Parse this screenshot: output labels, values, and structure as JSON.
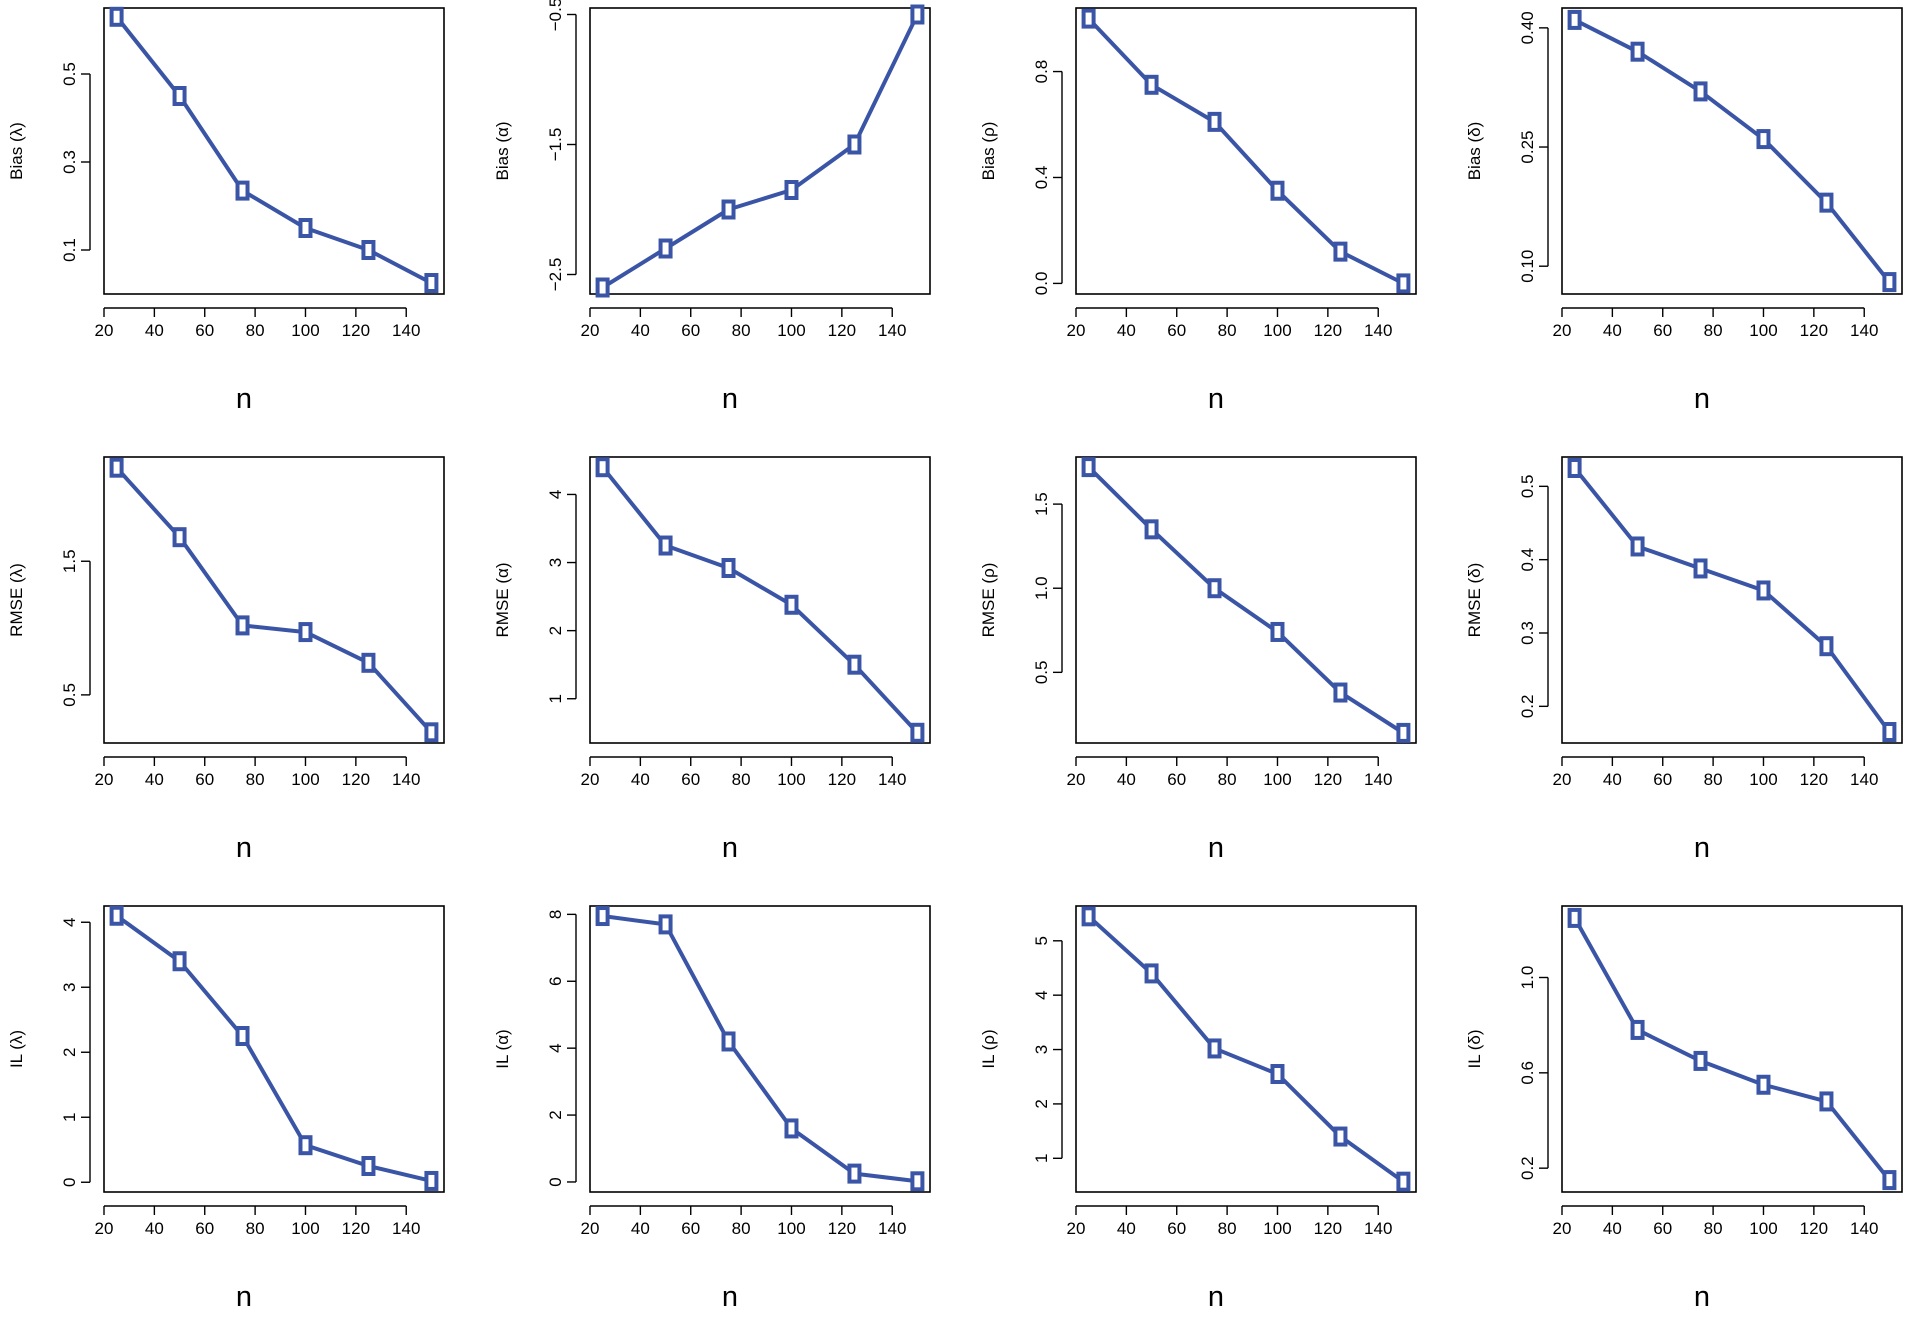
{
  "style": {
    "series_color": "#3b55a6",
    "axis_color": "#000000",
    "background": "#ffffff"
  },
  "chart_data": [
    {
      "type": "line",
      "title": "",
      "xlabel": "n",
      "ylabel": "Bias (λ)",
      "x": [
        25,
        50,
        75,
        100,
        125,
        150
      ],
      "values": [
        0.63,
        0.45,
        0.235,
        0.15,
        0.1,
        0.025
      ],
      "xlim": [
        20,
        155
      ],
      "ylim": [
        0.0,
        0.65
      ],
      "xticks": [
        20,
        40,
        60,
        80,
        100,
        120,
        140
      ],
      "xticklabels": [
        "20",
        "40",
        "60",
        "80",
        "100",
        "120",
        "140"
      ],
      "yticks": [
        0.1,
        0.3,
        0.5
      ],
      "yticklabels": [
        "0.1",
        "0.3",
        "0.5"
      ]
    },
    {
      "type": "line",
      "title": "",
      "xlabel": "n",
      "ylabel": "Bias (α)",
      "x": [
        25,
        50,
        75,
        100,
        125,
        150
      ],
      "values": [
        -2.6,
        -2.3,
        -2.0,
        -1.85,
        -1.5,
        -0.5
      ],
      "xlim": [
        20,
        155
      ],
      "ylim": [
        -2.65,
        -0.45
      ],
      "xticks": [
        20,
        40,
        60,
        80,
        100,
        120,
        140
      ],
      "xticklabels": [
        "20",
        "40",
        "60",
        "80",
        "100",
        "120",
        "140"
      ],
      "yticks": [
        -2.5,
        -1.5,
        -0.5
      ],
      "yticklabels": [
        "−2.5",
        "−1.5",
        "−0.5"
      ]
    },
    {
      "type": "line",
      "title": "",
      "xlabel": "n",
      "ylabel": "Bias (ρ)",
      "x": [
        25,
        50,
        75,
        100,
        125,
        150
      ],
      "values": [
        1.0,
        0.75,
        0.61,
        0.35,
        0.12,
        0.0
      ],
      "xlim": [
        20,
        155
      ],
      "ylim": [
        -0.04,
        1.04
      ],
      "xticks": [
        20,
        40,
        60,
        80,
        100,
        120,
        140
      ],
      "xticklabels": [
        "20",
        "40",
        "60",
        "80",
        "100",
        "120",
        "140"
      ],
      "yticks": [
        0.0,
        0.4,
        0.8
      ],
      "yticklabels": [
        "0.0",
        "0.4",
        "0.8"
      ]
    },
    {
      "type": "line",
      "title": "",
      "xlabel": "n",
      "ylabel": "Bias (δ)",
      "x": [
        25,
        50,
        75,
        100,
        125,
        150
      ],
      "values": [
        0.41,
        0.37,
        0.32,
        0.26,
        0.18,
        0.08
      ],
      "xlim": [
        20,
        155
      ],
      "ylim": [
        0.065,
        0.425
      ],
      "xticks": [
        20,
        40,
        60,
        80,
        100,
        120,
        140
      ],
      "xticklabels": [
        "20",
        "40",
        "60",
        "80",
        "100",
        "120",
        "140"
      ],
      "yticks": [
        0.1,
        0.25,
        0.4
      ],
      "yticklabels": [
        "0.10",
        "0.25",
        "0.40"
      ]
    },
    {
      "type": "line",
      "title": "",
      "xlabel": "n",
      "ylabel": "RMSE (λ)",
      "x": [
        25,
        50,
        75,
        100,
        125,
        150
      ],
      "values": [
        2.2,
        1.68,
        1.02,
        0.97,
        0.74,
        0.22
      ],
      "xlim": [
        20,
        155
      ],
      "ylim": [
        0.14,
        2.28
      ],
      "xticks": [
        20,
        40,
        60,
        80,
        100,
        120,
        140
      ],
      "xticklabels": [
        "20",
        "40",
        "60",
        "80",
        "100",
        "120",
        "140"
      ],
      "yticks": [
        0.5,
        1.5
      ],
      "yticklabels": [
        "0.5",
        "1.5"
      ]
    },
    {
      "type": "line",
      "title": "",
      "xlabel": "n",
      "ylabel": "RMSE (α)",
      "x": [
        25,
        50,
        75,
        100,
        125,
        150
      ],
      "values": [
        4.4,
        3.25,
        2.92,
        2.38,
        1.5,
        0.5
      ],
      "xlim": [
        20,
        155
      ],
      "ylim": [
        0.35,
        4.55
      ],
      "xticks": [
        20,
        40,
        60,
        80,
        100,
        120,
        140
      ],
      "xticklabels": [
        "20",
        "40",
        "60",
        "80",
        "100",
        "120",
        "140"
      ],
      "yticks": [
        1,
        2,
        3,
        4
      ],
      "yticklabels": [
        "1",
        "2",
        "3",
        "4"
      ]
    },
    {
      "type": "line",
      "title": "",
      "xlabel": "n",
      "ylabel": "RMSE (ρ)",
      "x": [
        25,
        50,
        75,
        100,
        125,
        150
      ],
      "values": [
        1.72,
        1.35,
        1.0,
        0.74,
        0.38,
        0.14
      ],
      "xlim": [
        20,
        155
      ],
      "ylim": [
        0.08,
        1.78
      ],
      "xticks": [
        20,
        40,
        60,
        80,
        100,
        120,
        140
      ],
      "xticklabels": [
        "20",
        "40",
        "60",
        "80",
        "100",
        "120",
        "140"
      ],
      "yticks": [
        0.5,
        1.0,
        1.5
      ],
      "yticklabels": [
        "0.5",
        "1.0",
        "1.5"
      ]
    },
    {
      "type": "line",
      "title": "",
      "xlabel": "n",
      "ylabel": "RMSE (δ)",
      "x": [
        25,
        50,
        75,
        100,
        125,
        150
      ],
      "values": [
        0.525,
        0.418,
        0.388,
        0.358,
        0.282,
        0.165
      ],
      "xlim": [
        20,
        155
      ],
      "ylim": [
        0.15,
        0.54
      ],
      "xticks": [
        20,
        40,
        60,
        80,
        100,
        120,
        140
      ],
      "xticklabels": [
        "20",
        "40",
        "60",
        "80",
        "100",
        "120",
        "140"
      ],
      "yticks": [
        0.2,
        0.3,
        0.4,
        0.5
      ],
      "yticklabels": [
        "0.2",
        "0.3",
        "0.4",
        "0.5"
      ]
    },
    {
      "type": "line",
      "title": "",
      "xlabel": "n",
      "ylabel": "IL (λ)",
      "x": [
        25,
        50,
        75,
        100,
        125,
        150
      ],
      "values": [
        4.1,
        3.4,
        2.25,
        0.57,
        0.25,
        0.02
      ],
      "xlim": [
        20,
        155
      ],
      "ylim": [
        -0.15,
        4.25
      ],
      "xticks": [
        20,
        40,
        60,
        80,
        100,
        120,
        140
      ],
      "xticklabels": [
        "20",
        "40",
        "60",
        "80",
        "100",
        "120",
        "140"
      ],
      "yticks": [
        0,
        1,
        2,
        3,
        4
      ],
      "yticklabels": [
        "0",
        "1",
        "2",
        "3",
        "4"
      ]
    },
    {
      "type": "line",
      "title": "",
      "xlabel": "n",
      "ylabel": "IL (α)",
      "x": [
        25,
        50,
        75,
        100,
        125,
        150
      ],
      "values": [
        7.95,
        7.7,
        4.2,
        1.6,
        0.25,
        0.02
      ],
      "xlim": [
        20,
        155
      ],
      "ylim": [
        -0.3,
        8.25
      ],
      "xticks": [
        20,
        40,
        60,
        80,
        100,
        120,
        140
      ],
      "xticklabels": [
        "20",
        "40",
        "60",
        "80",
        "100",
        "120",
        "140"
      ],
      "yticks": [
        0,
        2,
        4,
        6,
        8
      ],
      "yticklabels": [
        "0",
        "2",
        "4",
        "6",
        "8"
      ]
    },
    {
      "type": "line",
      "title": "",
      "xlabel": "n",
      "ylabel": "IL (ρ)",
      "x": [
        25,
        50,
        75,
        100,
        125,
        150
      ],
      "values": [
        5.45,
        4.4,
        3.02,
        2.55,
        1.4,
        0.57
      ],
      "xlim": [
        20,
        155
      ],
      "ylim": [
        0.38,
        5.64
      ],
      "xticks": [
        20,
        40,
        60,
        80,
        100,
        120,
        140
      ],
      "xticklabels": [
        "20",
        "40",
        "60",
        "80",
        "100",
        "120",
        "140"
      ],
      "yticks": [
        1,
        2,
        3,
        4,
        5
      ],
      "yticklabels": [
        "1",
        "2",
        "3",
        "4",
        "5"
      ]
    },
    {
      "type": "line",
      "title": "",
      "xlabel": "n",
      "ylabel": "IL (δ)",
      "x": [
        25,
        50,
        75,
        100,
        125,
        150
      ],
      "values": [
        1.25,
        0.78,
        0.65,
        0.55,
        0.48,
        0.15
      ],
      "xlim": [
        20,
        155
      ],
      "ylim": [
        0.1,
        1.3
      ],
      "xticks": [
        20,
        40,
        60,
        80,
        100,
        120,
        140
      ],
      "xticklabels": [
        "20",
        "40",
        "60",
        "80",
        "100",
        "120",
        "140"
      ],
      "yticks": [
        0.2,
        0.6,
        1.0
      ],
      "yticklabels": [
        "0.2",
        "0.6",
        "1.0"
      ]
    }
  ]
}
